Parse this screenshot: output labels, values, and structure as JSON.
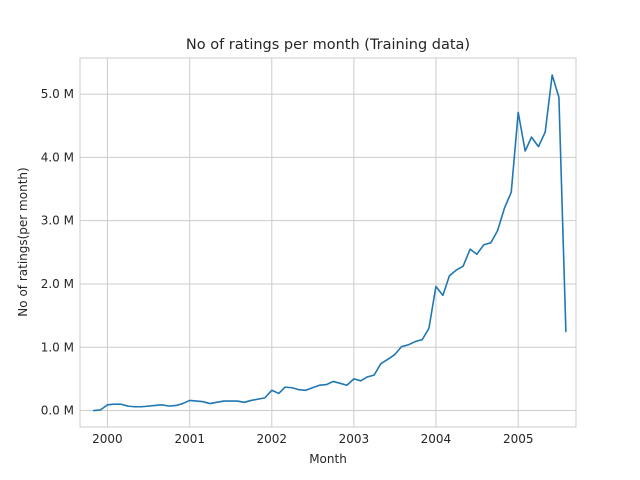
{
  "chart_data": {
    "type": "line",
    "title": "No of ratings per month (Training data)",
    "xlabel": "Month",
    "ylabel": "No of ratings(per month)",
    "grid": true,
    "legend": "none",
    "line_color": "#1f77b4",
    "grid_color": "#cccccc",
    "xlim": [
      "1999-09-01",
      "2005-09-15"
    ],
    "ylim": [
      -0.26,
      5.57
    ],
    "y_unit": "M",
    "x_ticks": [
      {
        "value": "2000-01-01",
        "label": "2000"
      },
      {
        "value": "2001-01-01",
        "label": "2001"
      },
      {
        "value": "2002-01-01",
        "label": "2002"
      },
      {
        "value": "2003-01-01",
        "label": "2003"
      },
      {
        "value": "2004-01-01",
        "label": "2004"
      },
      {
        "value": "2005-01-01",
        "label": "2005"
      }
    ],
    "y_ticks": [
      {
        "value": 0,
        "label": "0.0 M"
      },
      {
        "value": 1,
        "label": "1.0 M"
      },
      {
        "value": 2,
        "label": "2.0 M"
      },
      {
        "value": 3,
        "label": "3.0 M"
      },
      {
        "value": 4,
        "label": "4.0 M"
      },
      {
        "value": 5,
        "label": "5.0 M"
      }
    ],
    "series": [
      {
        "x": [
          "1999-11-01",
          "1999-12-01",
          "2000-01-01",
          "2000-02-01",
          "2000-03-01",
          "2000-04-01",
          "2000-05-01",
          "2000-06-01",
          "2000-07-01",
          "2000-08-01",
          "2000-09-01",
          "2000-10-01",
          "2000-11-01",
          "2000-12-01",
          "2001-01-01",
          "2001-02-01",
          "2001-03-01",
          "2001-04-01",
          "2001-05-01",
          "2001-06-01",
          "2001-07-01",
          "2001-08-01",
          "2001-09-01",
          "2001-10-01",
          "2001-11-01",
          "2001-12-01",
          "2002-01-01",
          "2002-02-01",
          "2002-03-01",
          "2002-04-01",
          "2002-05-01",
          "2002-06-01",
          "2002-07-01",
          "2002-08-01",
          "2002-09-01",
          "2002-10-01",
          "2002-11-01",
          "2002-12-01",
          "2003-01-01",
          "2003-02-01",
          "2003-03-01",
          "2003-04-01",
          "2003-05-01",
          "2003-06-01",
          "2003-07-01",
          "2003-08-01",
          "2003-09-01",
          "2003-10-01",
          "2003-11-01",
          "2003-12-01",
          "2004-01-01",
          "2004-02-01",
          "2004-03-01",
          "2004-04-01",
          "2004-05-01",
          "2004-06-01",
          "2004-07-01",
          "2004-08-01",
          "2004-09-01",
          "2004-10-01",
          "2004-11-01",
          "2004-12-01",
          "2005-01-01",
          "2005-02-01",
          "2005-03-01",
          "2005-04-01",
          "2005-05-01",
          "2005-06-01",
          "2005-07-01",
          "2005-08-01"
        ],
        "y": [
          0.0,
          0.01,
          0.09,
          0.1,
          0.1,
          0.07,
          0.06,
          0.06,
          0.07,
          0.08,
          0.09,
          0.07,
          0.08,
          0.11,
          0.16,
          0.15,
          0.14,
          0.11,
          0.13,
          0.15,
          0.15,
          0.15,
          0.13,
          0.16,
          0.18,
          0.2,
          0.32,
          0.27,
          0.37,
          0.36,
          0.33,
          0.32,
          0.36,
          0.4,
          0.41,
          0.46,
          0.43,
          0.4,
          0.5,
          0.47,
          0.53,
          0.56,
          0.74,
          0.81,
          0.88,
          1.01,
          1.04,
          1.09,
          1.12,
          1.3,
          1.96,
          1.82,
          2.13,
          2.22,
          2.28,
          2.55,
          2.47,
          2.62,
          2.65,
          2.84,
          3.2,
          3.45,
          4.71,
          4.1,
          4.32,
          4.17,
          4.4,
          5.3,
          4.95,
          1.25
        ]
      }
    ]
  }
}
